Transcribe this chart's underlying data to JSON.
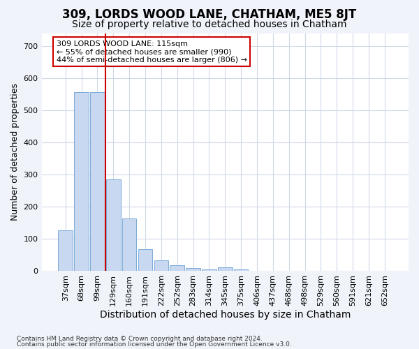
{
  "title": "309, LORDS WOOD LANE, CHATHAM, ME5 8JT",
  "subtitle": "Size of property relative to detached houses in Chatham",
  "xlabel": "Distribution of detached houses by size in Chatham",
  "ylabel": "Number of detached properties",
  "footnote1": "Contains HM Land Registry data © Crown copyright and database right 2024.",
  "footnote2": "Contains public sector information licensed under the Open Government Licence v3.0.",
  "annotation_line1": "309 LORDS WOOD LANE: 115sqm",
  "annotation_line2": "← 55% of detached houses are smaller (990)",
  "annotation_line3": "44% of semi-detached houses are larger (806) →",
  "bar_color": "#c8d8f0",
  "bar_edge_color": "#7aaad8",
  "vline_color": "#cc0000",
  "vline_x": 2.5,
  "categories": [
    "37sqm",
    "68sqm",
    "99sqm",
    "129sqm",
    "160sqm",
    "191sqm",
    "222sqm",
    "252sqm",
    "283sqm",
    "314sqm",
    "345sqm",
    "375sqm",
    "406sqm",
    "437sqm",
    "468sqm",
    "498sqm",
    "529sqm",
    "560sqm",
    "591sqm",
    "621sqm",
    "652sqm"
  ],
  "values": [
    125,
    557,
    557,
    285,
    163,
    68,
    32,
    18,
    8,
    5,
    10,
    5,
    0,
    0,
    0,
    0,
    0,
    0,
    0,
    0,
    0
  ],
  "ylim": [
    0,
    740
  ],
  "yticks": [
    0,
    100,
    200,
    300,
    400,
    500,
    600,
    700
  ],
  "fig_background": "#f0f4fa",
  "plot_background": "#ffffff",
  "grid_color": "#d0d8e8",
  "title_fontsize": 12,
  "subtitle_fontsize": 10,
  "ylabel_fontsize": 9,
  "xlabel_fontsize": 10,
  "tick_fontsize": 8
}
